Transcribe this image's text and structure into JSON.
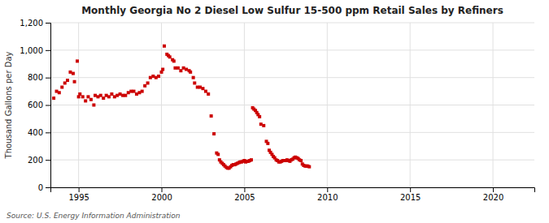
{
  "chart_data": {
    "type": "scatter",
    "title": "Monthly Georgia No 2 Diesel Low Sulfur 15-500 ppm Retail Sales by Refiners",
    "ylabel": "Thousand Gallons per Day",
    "source": "Source: U.S. Energy Information Administration",
    "color": "#cc0000",
    "marker": "square",
    "grid": true,
    "xlim": [
      1993.3,
      2022.5
    ],
    "xticks": [
      1995,
      2000,
      2005,
      2010,
      2015,
      2020
    ],
    "ylim": [
      0,
      1200
    ],
    "yticks": [
      0,
      200,
      400,
      600,
      800,
      {
        "value": 1000,
        "label": "1,000"
      },
      {
        "value": 1200,
        "label": "1,200"
      }
    ],
    "x": [
      1993.5,
      1993.67,
      1993.83,
      1994.0,
      1994.17,
      1994.33,
      1994.5,
      1994.67,
      1994.75,
      1994.92,
      1995.0,
      1995.08,
      1995.25,
      1995.42,
      1995.58,
      1995.75,
      1995.92,
      1996.0,
      1996.17,
      1996.33,
      1996.5,
      1996.67,
      1996.83,
      1997.0,
      1997.17,
      1997.33,
      1997.5,
      1997.67,
      1997.83,
      1998.0,
      1998.17,
      1998.33,
      1998.5,
      1998.67,
      1998.83,
      1999.0,
      1999.17,
      1999.33,
      1999.5,
      1999.67,
      1999.83,
      2000.0,
      2000.08,
      2000.17,
      2000.33,
      2000.42,
      2000.5,
      2000.67,
      2000.75,
      2000.83,
      2001.0,
      2001.17,
      2001.33,
      2001.5,
      2001.67,
      2001.75,
      2001.92,
      2002.0,
      2002.17,
      2002.33,
      2002.5,
      2002.67,
      2002.83,
      2003.0,
      2003.17,
      2003.33,
      2003.42,
      2003.5,
      2003.58,
      2003.67,
      2003.75,
      2003.83,
      2003.92,
      2004.0,
      2004.08,
      2004.17,
      2004.25,
      2004.33,
      2004.42,
      2004.5,
      2004.58,
      2004.67,
      2004.75,
      2004.83,
      2004.92,
      2005.0,
      2005.08,
      2005.17,
      2005.25,
      2005.33,
      2005.42,
      2005.5,
      2005.58,
      2005.67,
      2005.75,
      2005.83,
      2005.92,
      2006.0,
      2006.17,
      2006.33,
      2006.42,
      2006.5,
      2006.58,
      2006.67,
      2006.75,
      2006.83,
      2006.92,
      2007.0,
      2007.08,
      2007.17,
      2007.25,
      2007.33,
      2007.42,
      2007.5,
      2007.58,
      2007.67,
      2007.75,
      2007.83,
      2007.92,
      2008.0,
      2008.08,
      2008.17,
      2008.25,
      2008.33,
      2008.42,
      2008.5,
      2008.58,
      2008.67,
      2008.75,
      2008.83,
      2008.92
    ],
    "values": [
      650,
      700,
      690,
      730,
      760,
      780,
      840,
      830,
      770,
      920,
      660,
      680,
      660,
      630,
      660,
      640,
      600,
      670,
      660,
      670,
      650,
      670,
      660,
      680,
      660,
      670,
      680,
      670,
      670,
      690,
      700,
      700,
      680,
      690,
      700,
      740,
      760,
      800,
      810,
      800,
      810,
      840,
      860,
      1030,
      970,
      960,
      950,
      930,
      920,
      870,
      870,
      850,
      870,
      860,
      850,
      840,
      800,
      760,
      730,
      730,
      720,
      700,
      680,
      520,
      390,
      250,
      240,
      200,
      185,
      175,
      165,
      155,
      145,
      140,
      140,
      150,
      160,
      165,
      165,
      170,
      175,
      180,
      185,
      185,
      190,
      195,
      185,
      190,
      190,
      195,
      200,
      580,
      570,
      560,
      545,
      530,
      515,
      460,
      450,
      335,
      320,
      270,
      255,
      240,
      225,
      215,
      200,
      195,
      185,
      185,
      190,
      195,
      195,
      195,
      200,
      195,
      190,
      200,
      205,
      215,
      220,
      215,
      210,
      200,
      195,
      170,
      160,
      155,
      155,
      155,
      150
    ]
  }
}
